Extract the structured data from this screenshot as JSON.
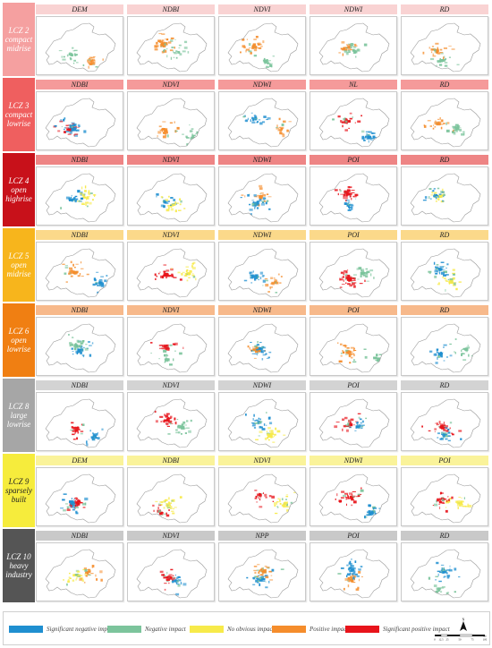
{
  "rows": [
    {
      "label": "LCZ 2\ncompact\nmidrise",
      "label_bg": "#f5a0a0",
      "header_bg": "#f9d3d3",
      "label_color": "#ffffff",
      "panels": [
        "DEM",
        "NDBI",
        "NDVI",
        "NDWI",
        "RD"
      ],
      "cover": [
        [
          "negative",
          "positive"
        ],
        [
          "positive",
          "negative"
        ],
        [
          "positive",
          "negative"
        ],
        [
          "positive",
          "negative"
        ],
        [
          "positive",
          "negative"
        ]
      ]
    },
    {
      "label": "LCZ 3\ncompact\nlowrise",
      "label_bg": "#ef5f5f",
      "header_bg": "#f59a9a",
      "label_color": "#ffffff",
      "panels": [
        "NDBI",
        "NDVI",
        "NDWI",
        "NL",
        "RD"
      ],
      "cover": [
        [
          "significant-negative",
          "significant-positive"
        ],
        [
          "positive",
          "negative"
        ],
        [
          "significant-negative",
          "positive"
        ],
        [
          "significant-positive",
          "significant-negative"
        ],
        [
          "positive",
          "negative"
        ]
      ]
    },
    {
      "label": "LCZ 4\nopen\nhighrise",
      "label_bg": "#c8111a",
      "header_bg": "#ee8585",
      "label_color": "#ffffff",
      "panels": [
        "NDBI",
        "NDVI",
        "NDWI",
        "POI",
        "RD"
      ],
      "cover": [
        [
          "significant-negative",
          "no-obvious"
        ],
        [
          "significant-negative",
          "no-obvious"
        ],
        [
          "significant-negative",
          "positive"
        ],
        [
          "significant-positive",
          "significant-negative"
        ],
        [
          "no-obvious",
          "significant-negative"
        ]
      ]
    },
    {
      "label": "LCZ 5\nopen\nmidrise",
      "label_bg": "#f7b51c",
      "header_bg": "#fbd98a",
      "label_color": "#ffffff",
      "panels": [
        "NDBI",
        "NDVI",
        "NDWI",
        "POI",
        "RD"
      ],
      "cover": [
        [
          "positive",
          "significant-negative"
        ],
        [
          "significant-positive",
          "no-obvious"
        ],
        [
          "significant-negative",
          "positive"
        ],
        [
          "significant-positive",
          "negative"
        ],
        [
          "significant-negative",
          "no-obvious"
        ]
      ]
    },
    {
      "label": "LCZ 6\nopen\nlowrise",
      "label_bg": "#f07f12",
      "header_bg": "#f7b98b",
      "label_color": "#ffffff",
      "panels": [
        "NDBI",
        "NDVI",
        "NDWI",
        "POI",
        "RD"
      ],
      "cover": [
        [
          "negative",
          "significant-negative"
        ],
        [
          "significant-positive",
          "negative"
        ],
        [
          "significant-negative",
          "positive"
        ],
        [
          "positive",
          "negative"
        ],
        [
          "significant-negative",
          "negative"
        ]
      ]
    },
    {
      "label": "LCZ 8\nlarge\nlowrise",
      "label_bg": "#a6a6a6",
      "header_bg": "#d3d3d3",
      "label_color": "#ffffff",
      "panels": [
        "NDBI",
        "NDVI",
        "NDWI",
        "POI",
        "RD"
      ],
      "cover": [
        [
          "significant-positive",
          "significant-negative"
        ],
        [
          "significant-positive",
          "negative"
        ],
        [
          "significant-negative",
          "no-obvious"
        ],
        [
          "significant-positive",
          "significant-negative"
        ],
        [
          "significant-positive",
          "significant-negative"
        ]
      ]
    },
    {
      "label": "LCZ 9\nsparsely\nbuilt",
      "label_bg": "#f6ec3c",
      "header_bg": "#faf39a",
      "label_color": "#222222",
      "panels": [
        "DEM",
        "NDBI",
        "NDVI",
        "NDWI",
        "POI"
      ],
      "cover": [
        [
          "significant-positive",
          "significant-negative"
        ],
        [
          "no-obvious",
          "significant-positive"
        ],
        [
          "significant-positive",
          "no-obvious"
        ],
        [
          "significant-positive",
          "significant-negative"
        ],
        [
          "significant-positive",
          "no-obvious"
        ]
      ]
    },
    {
      "label": "LCZ 10\nheavy\nindustry",
      "label_bg": "#555555",
      "header_bg": "#c9c9c9",
      "label_color": "#ffffff",
      "panels": [
        "NDBI",
        "NDVI",
        "NPP",
        "POI",
        "RD"
      ],
      "cover": [
        [
          "no-obvious",
          "positive"
        ],
        [
          "significant-positive",
          "significant-negative"
        ],
        [
          "significant-negative",
          "positive"
        ],
        [
          "significant-negative",
          "positive"
        ],
        [
          "significant-negative",
          "negative"
        ]
      ]
    }
  ],
  "legend": [
    {
      "key": "significant-negative",
      "label": "Significant negative impact",
      "color": "#1f8fd0"
    },
    {
      "key": "negative",
      "label": "Negative impact",
      "color": "#7cc49c"
    },
    {
      "key": "no-obvious",
      "label": "No obvious impact",
      "color": "#f7ea4a"
    },
    {
      "key": "positive",
      "label": "Positive impact",
      "color": "#f58d2c"
    },
    {
      "key": "significant-positive",
      "label": "Significant positive impact",
      "color": "#e8141b"
    }
  ],
  "scale": {
    "north": "N",
    "ticks": [
      "0",
      "12.5",
      "25",
      "50",
      "75",
      "100"
    ],
    "unit": "km"
  }
}
